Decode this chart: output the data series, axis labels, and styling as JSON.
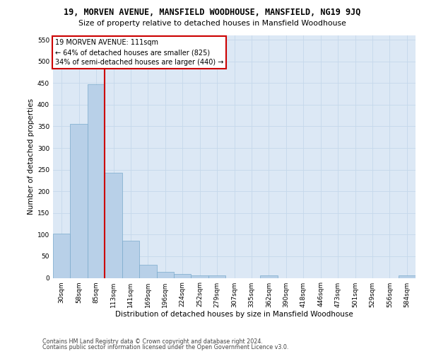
{
  "title_line1": "19, MORVEN AVENUE, MANSFIELD WOODHOUSE, MANSFIELD, NG19 9JQ",
  "title_line2": "Size of property relative to detached houses in Mansfield Woodhouse",
  "xlabel": "Distribution of detached houses by size in Mansfield Woodhouse",
  "ylabel": "Number of detached properties",
  "footer_line1": "Contains HM Land Registry data © Crown copyright and database right 2024.",
  "footer_line2": "Contains public sector information licensed under the Open Government Licence v3.0.",
  "categories": [
    "30sqm",
    "58sqm",
    "85sqm",
    "113sqm",
    "141sqm",
    "169sqm",
    "196sqm",
    "224sqm",
    "252sqm",
    "279sqm",
    "307sqm",
    "335sqm",
    "362sqm",
    "390sqm",
    "418sqm",
    "446sqm",
    "473sqm",
    "501sqm",
    "529sqm",
    "556sqm",
    "584sqm"
  ],
  "values": [
    102,
    356,
    447,
    243,
    86,
    30,
    14,
    9,
    5,
    5,
    0,
    0,
    5,
    0,
    0,
    0,
    0,
    0,
    0,
    0,
    5
  ],
  "bar_color": "#b8d0e8",
  "bar_edge_color": "#7aabcc",
  "vline_x": 2.5,
  "vline_color": "#cc0000",
  "annotation_text": "19 MORVEN AVENUE: 111sqm\n← 64% of detached houses are smaller (825)\n34% of semi-detached houses are larger (440) →",
  "annotation_box_facecolor": "#ffffff",
  "annotation_box_edgecolor": "#cc0000",
  "ylim": [
    0,
    560
  ],
  "yticks": [
    0,
    50,
    100,
    150,
    200,
    250,
    300,
    350,
    400,
    450,
    500,
    550
  ],
  "grid_color": "#c5d8eb",
  "bg_color": "#dce8f5",
  "title1_fontsize": 8.5,
  "title2_fontsize": 7.8,
  "tick_fontsize": 6.5,
  "ylabel_fontsize": 7.5,
  "xlabel_fontsize": 7.5,
  "annotation_fontsize": 7.0,
  "footer_fontsize": 5.8
}
